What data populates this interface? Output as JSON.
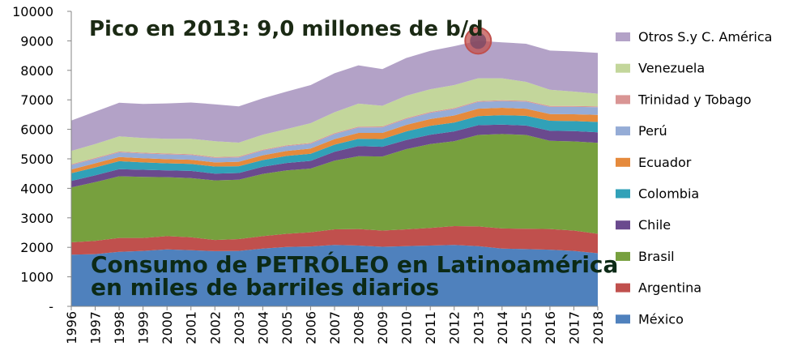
{
  "chart_data": {
    "type": "area",
    "stacked": true,
    "x": [
      "1996",
      "1997",
      "1998",
      "1999",
      "2000",
      "2001",
      "2002",
      "2003",
      "2004",
      "2005",
      "2006",
      "2007",
      "2008",
      "2009",
      "2010",
      "2011",
      "2012",
      "2013",
      "2014",
      "2015",
      "2016",
      "2017",
      "2018"
    ],
    "ylim": [
      0,
      10000
    ],
    "yticks": [
      "-",
      "1000",
      "2000",
      "3000",
      "4000",
      "5000",
      "6000",
      "7000",
      "8000",
      "9000",
      "10000"
    ],
    "grid": false,
    "legend_position": "right",
    "headline": "Pico en 2013: 9,0 millones de b/d",
    "caption_line1": "Consumo de PETRÓLEO en Latinoamérica",
    "caption_line2": "en miles de barriles diarios",
    "peak_marker": {
      "x": "2013",
      "y": 9000,
      "color": "#c0504d"
    },
    "series": [
      {
        "name": "México",
        "color": "#4f81bd",
        "values": [
          1750,
          1770,
          1850,
          1880,
          1930,
          1900,
          1870,
          1880,
          1960,
          2010,
          2030,
          2080,
          2060,
          2020,
          2040,
          2060,
          2080,
          2040,
          1960,
          1940,
          1920,
          1880,
          1800
        ]
      },
      {
        "name": "Argentina",
        "color": "#c0504d",
        "values": [
          420,
          450,
          470,
          440,
          450,
          440,
          380,
          400,
          420,
          450,
          480,
          530,
          560,
          550,
          570,
          600,
          640,
          670,
          680,
          690,
          700,
          690,
          660
        ]
      },
      {
        "name": "Brasil",
        "color": "#77a03e",
        "values": [
          1860,
          1990,
          2090,
          2070,
          2000,
          2010,
          2020,
          2010,
          2110,
          2150,
          2160,
          2330,
          2470,
          2510,
          2720,
          2840,
          2880,
          3100,
          3200,
          3180,
          2990,
          3020,
          3080
        ]
      },
      {
        "name": "Chile",
        "color": "#6a4a8e",
        "values": [
          220,
          230,
          240,
          240,
          230,
          240,
          230,
          230,
          240,
          250,
          260,
          300,
          340,
          330,
          310,
          320,
          330,
          330,
          320,
          320,
          340,
          350,
          360
        ]
      },
      {
        "name": "Colombia",
        "color": "#31a1b8",
        "values": [
          260,
          270,
          270,
          250,
          240,
          240,
          240,
          230,
          230,
          240,
          240,
          240,
          250,
          260,
          290,
          300,
          300,
          310,
          320,
          330,
          340,
          340,
          350
        ]
      },
      {
        "name": "Ecuador",
        "color": "#e58a3c",
        "values": [
          130,
          140,
          140,
          140,
          140,
          140,
          140,
          150,
          160,
          170,
          180,
          190,
          200,
          210,
          220,
          230,
          240,
          250,
          250,
          240,
          230,
          230,
          240
        ]
      },
      {
        "name": "Perú",
        "color": "#95acd6",
        "values": [
          150,
          150,
          160,
          160,
          160,
          160,
          150,
          150,
          160,
          160,
          160,
          170,
          180,
          190,
          200,
          210,
          220,
          230,
          230,
          240,
          240,
          250,
          260
        ]
      },
      {
        "name": "Trinidad y Tobago",
        "color": "#d99594",
        "values": [
          30,
          30,
          30,
          30,
          30,
          30,
          30,
          30,
          30,
          30,
          30,
          30,
          30,
          30,
          30,
          30,
          30,
          30,
          30,
          30,
          30,
          30,
          30
        ]
      },
      {
        "name": "Venezuela",
        "color": "#c3d69b",
        "values": [
          450,
          470,
          510,
          500,
          500,
          520,
          540,
          470,
          510,
          550,
          670,
          710,
          780,
          700,
          760,
          770,
          780,
          770,
          740,
          640,
          550,
          490,
          430
        ]
      },
      {
        "name": "Otros S.y C. América",
        "color": "#b3a2c7",
        "values": [
          1030,
          1100,
          1140,
          1150,
          1200,
          1230,
          1250,
          1230,
          1230,
          1270,
          1290,
          1320,
          1300,
          1240,
          1280,
          1300,
          1320,
          1270,
          1220,
          1290,
          1330,
          1360,
          1380
        ]
      }
    ]
  }
}
